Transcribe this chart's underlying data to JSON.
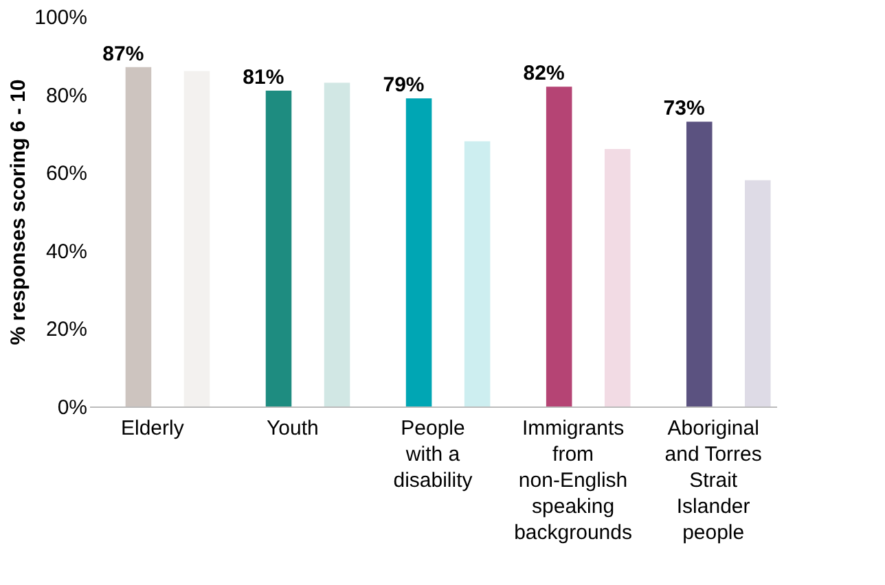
{
  "chart_data": {
    "type": "bar",
    "ylabel": "% responses scoring 6 - 10",
    "categories": [
      "Elderly",
      "Youth",
      "People with a disability",
      "Immigrants from non-English speaking backgrounds",
      "Aboriginal and Torres Strait Islander people"
    ],
    "series": [
      {
        "colors": [
          "#cdc4bf",
          "#1e8c80",
          "#00a6b4",
          "#b54474",
          "#5b5280"
        ],
        "values": [
          87,
          81,
          79,
          82,
          73
        ],
        "value_labels": [
          "87%",
          "81%",
          "79%",
          "82%",
          "73%"
        ]
      },
      {
        "colors": [
          "#f3f1ef",
          "#d1e7e4",
          "#cdeef0",
          "#f2dbe4",
          "#dedbe6"
        ],
        "values": [
          86,
          83,
          68,
          66,
          58
        ]
      }
    ],
    "ylim": [
      0,
      100
    ],
    "yticks": [
      {
        "value": 0,
        "label": "0%"
      },
      {
        "value": 20,
        "label": "20%"
      },
      {
        "value": 40,
        "label": "40%"
      },
      {
        "value": 60,
        "label": "60%"
      },
      {
        "value": 80,
        "label": "80%"
      },
      {
        "value": 100,
        "label": "100%"
      }
    ],
    "grid": false
  }
}
